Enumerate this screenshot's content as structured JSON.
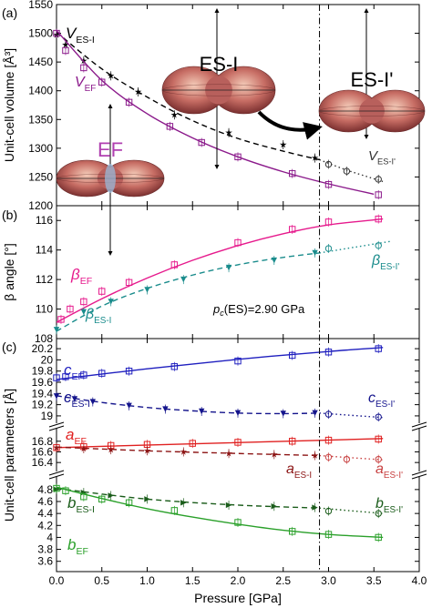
{
  "chart_data": [
    {
      "panel_label": "(a)",
      "type": "scatter",
      "ylabel": "Unit-cell volume [Å³]",
      "ylim": [
        1200,
        1550
      ],
      "yticks": [
        1200,
        1250,
        1300,
        1350,
        1400,
        1450,
        1500,
        1550
      ],
      "series": [
        {
          "key": "V_ES-I",
          "label_main": "V",
          "label_sub": "ES-I",
          "color": "#000000",
          "line": "dashed",
          "marker": "star",
          "x": [
            0.0,
            0.1,
            0.3,
            0.6,
            0.9,
            1.3,
            1.9,
            2.5,
            2.85
          ],
          "y": [
            1497,
            1480,
            1452,
            1426,
            1398,
            1358,
            1327,
            1306,
            1283
          ],
          "fit_x": [
            0.0,
            0.5,
            1.0,
            1.5,
            2.0,
            2.5,
            2.9
          ],
          "fit_y": [
            1502,
            1438,
            1389,
            1348,
            1317,
            1295,
            1280
          ]
        },
        {
          "key": "V_ES-I'",
          "label_main": "V",
          "label_sub": "ES-I'",
          "color": "#333333",
          "line": "dotted",
          "marker": "circle-open",
          "x": [
            3.0,
            3.2,
            3.55
          ],
          "y": [
            1272,
            1260,
            1246
          ],
          "fit_x": [
            2.9,
            3.2,
            3.6
          ],
          "fit_y": [
            1280,
            1262,
            1242
          ]
        },
        {
          "key": "V_EF",
          "label_main": "V",
          "label_sub": "EF",
          "color": "#8b1a8b",
          "line": "solid",
          "marker": "square",
          "x": [
            0.0,
            0.1,
            0.3,
            0.5,
            0.8,
            1.25,
            1.6,
            2.0,
            2.6,
            3.0,
            3.55
          ],
          "y": [
            1500,
            1470,
            1440,
            1415,
            1380,
            1338,
            1310,
            1285,
            1256,
            1237,
            1219
          ],
          "fit_x": [
            0.0,
            0.5,
            1.0,
            1.5,
            2.0,
            2.5,
            3.0,
            3.5
          ],
          "fit_y": [
            1505,
            1418,
            1360,
            1318,
            1285,
            1259,
            1238,
            1220
          ]
        }
      ]
    },
    {
      "panel_label": "(b)",
      "type": "scatter",
      "ylabel": "β angle [°]",
      "ylim": [
        108,
        117
      ],
      "yticks": [
        108,
        110,
        112,
        114,
        116
      ],
      "series": [
        {
          "key": "beta_EF",
          "label_main": "β",
          "label_sub": "EF",
          "color": "#e6198c",
          "line": "solid",
          "marker": "square",
          "x": [
            0.05,
            0.15,
            0.3,
            0.5,
            0.8,
            1.3,
            2.0,
            2.6,
            3.0,
            3.55
          ],
          "y": [
            109.3,
            110.0,
            110.5,
            111.2,
            111.8,
            113.0,
            114.5,
            115.4,
            115.9,
            116.1
          ],
          "fit_x": [
            0.0,
            0.5,
            1.0,
            1.5,
            2.0,
            2.5,
            3.0,
            3.6
          ],
          "fit_y": [
            109.1,
            110.7,
            112.1,
            113.3,
            114.3,
            115.1,
            115.7,
            116.1
          ]
        },
        {
          "key": "beta_ES-I",
          "label_main": "β",
          "label_sub": "ES-I",
          "color": "#1a8c8c",
          "line": "dashed",
          "marker": "triangle-down",
          "x": [
            0.0,
            0.3,
            0.6,
            1.0,
            1.4,
            1.9,
            2.4,
            2.85
          ],
          "y": [
            108.6,
            109.8,
            110.5,
            111.3,
            112.0,
            112.8,
            113.3,
            113.8
          ],
          "fit_x": [
            0.0,
            0.5,
            1.0,
            1.5,
            2.0,
            2.5,
            2.9
          ],
          "fit_y": [
            108.5,
            110.2,
            111.4,
            112.3,
            113.0,
            113.5,
            113.8
          ]
        },
        {
          "key": "beta_ES-I'",
          "label_main": "β",
          "label_sub": "ES-I'",
          "color": "#1a8c8c",
          "line": "dotted",
          "marker": "circle-open",
          "x": [
            3.0,
            3.55
          ],
          "y": [
            114.1,
            114.3
          ],
          "fit_x": [
            2.9,
            3.3,
            3.7
          ],
          "fit_y": [
            113.8,
            114.2,
            114.6
          ]
        }
      ]
    },
    {
      "panel_label": "(c)",
      "type": "scatter",
      "ylabel": "Unit-cell parameters [Å]",
      "broken_axis": true,
      "segments": [
        {
          "ylim": [
            18.95,
            20.25
          ],
          "yticks": [
            19.0,
            19.2,
            19.4,
            19.6,
            19.8,
            20.0,
            20.2
          ]
        },
        {
          "ylim": [
            16.3,
            16.95
          ],
          "yticks": [
            16.4,
            16.6,
            16.8
          ]
        },
        {
          "ylim": [
            3.55,
            4.95
          ],
          "yticks": [
            3.6,
            3.8,
            4.0,
            4.2,
            4.4,
            4.6,
            4.8
          ]
        }
      ],
      "series": [
        {
          "key": "c_EF",
          "segment": 0,
          "label_main": "c",
          "label_sub": "EF",
          "color": "#1f1fbf",
          "line": "solid",
          "marker": "square",
          "x": [
            0.0,
            0.1,
            0.3,
            0.5,
            0.8,
            1.3,
            2.0,
            2.6,
            3.0,
            3.55
          ],
          "y": [
            19.68,
            19.7,
            19.73,
            19.76,
            19.8,
            19.88,
            19.98,
            20.08,
            20.14,
            20.2
          ],
          "fit_x": [
            0.0,
            1.0,
            2.0,
            3.0,
            3.6
          ],
          "fit_y": [
            19.65,
            19.84,
            20.01,
            20.15,
            20.22
          ]
        },
        {
          "key": "c_ES-I",
          "segment": 0,
          "label_main": "c",
          "label_sub": "ES-I",
          "color": "#14148c",
          "line": "dashed",
          "marker": "triangle-down",
          "x": [
            0.0,
            0.2,
            0.4,
            0.8,
            1.2,
            1.6,
            2.0,
            2.5,
            2.85
          ],
          "y": [
            19.35,
            19.3,
            19.25,
            19.18,
            19.12,
            19.08,
            19.05,
            19.04,
            19.05
          ],
          "fit_x": [
            0.0,
            0.5,
            1.0,
            1.5,
            2.0,
            2.5,
            2.9
          ],
          "fit_y": [
            19.36,
            19.24,
            19.15,
            19.09,
            19.05,
            19.04,
            19.05
          ]
        },
        {
          "key": "c_ES-I'",
          "segment": 0,
          "label_main": "c",
          "label_sub": "ES-I'",
          "color": "#14148c",
          "line": "dotted",
          "marker": "circle-open",
          "x": [
            3.0,
            3.55
          ],
          "y": [
            19.03,
            18.98
          ],
          "fit_x": [
            2.9,
            3.6
          ],
          "fit_y": [
            19.05,
            18.97
          ]
        },
        {
          "key": "a_EF",
          "segment": 1,
          "label_main": "a",
          "label_sub": "EF",
          "color": "#e02020",
          "line": "solid",
          "marker": "square",
          "x": [
            0.0,
            0.3,
            0.6,
            1.0,
            1.5,
            2.0,
            2.6,
            3.0,
            3.55
          ],
          "y": [
            16.68,
            16.7,
            16.72,
            16.74,
            16.76,
            16.78,
            16.8,
            16.82,
            16.84
          ],
          "fit_x": [
            0.0,
            3.6
          ],
          "fit_y": [
            16.68,
            16.85
          ]
        },
        {
          "key": "a_ES-I",
          "segment": 1,
          "label_main": "a",
          "label_sub": "ES-I",
          "color": "#8c1414",
          "line": "dashed",
          "marker": "star",
          "x": [
            0.0,
            0.3,
            0.6,
            1.0,
            1.4,
            1.9,
            2.4,
            2.85
          ],
          "y": [
            16.68,
            16.66,
            16.64,
            16.62,
            16.6,
            16.57,
            16.55,
            16.53
          ],
          "fit_x": [
            0.0,
            1.0,
            2.0,
            2.9
          ],
          "fit_y": [
            16.69,
            16.62,
            16.57,
            16.53
          ]
        },
        {
          "key": "a_ES-I'",
          "segment": 1,
          "label_main": "a",
          "label_sub": "ES-I'",
          "color": "#c84040",
          "line": "dotted",
          "marker": "circle-open",
          "x": [
            3.0,
            3.2,
            3.55
          ],
          "y": [
            16.5,
            16.46,
            16.46
          ],
          "fit_x": [
            2.9,
            3.6
          ],
          "fit_y": [
            16.53,
            16.45
          ]
        },
        {
          "key": "b_ES-I",
          "segment": 2,
          "label_main": "b",
          "label_sub": "ES-I",
          "color": "#1a5c1a",
          "line": "dashed",
          "marker": "triangle-right",
          "x": [
            0.0,
            0.3,
            0.6,
            1.0,
            1.4,
            1.9,
            2.4,
            2.85
          ],
          "y": [
            4.8,
            4.75,
            4.7,
            4.64,
            4.58,
            4.54,
            4.52,
            4.5
          ],
          "fit_x": [
            0.0,
            1.0,
            2.0,
            2.9
          ],
          "fit_y": [
            4.82,
            4.64,
            4.54,
            4.49
          ]
        },
        {
          "key": "b_ES-I'",
          "segment": 2,
          "label_main": "b",
          "label_sub": "ES-I'",
          "color": "#1a5c1a",
          "line": "dotted",
          "marker": "circle-open",
          "x": [
            3.0,
            3.55
          ],
          "y": [
            4.44,
            4.4
          ],
          "fit_x": [
            2.9,
            3.6
          ],
          "fit_y": [
            4.49,
            4.4
          ]
        },
        {
          "key": "b_EF",
          "segment": 2,
          "label_main": "b",
          "label_sub": "EF",
          "color": "#2aa02a",
          "line": "solid",
          "marker": "square",
          "x": [
            0.0,
            0.1,
            0.3,
            0.5,
            0.8,
            1.3,
            2.0,
            2.6,
            3.0,
            3.55
          ],
          "y": [
            4.82,
            4.78,
            4.68,
            4.64,
            4.58,
            4.45,
            4.25,
            4.1,
            4.05,
            4.0
          ],
          "fit_x": [
            0.0,
            0.5,
            1.0,
            1.5,
            2.0,
            2.5,
            3.0,
            3.6
          ],
          "fit_y": [
            4.84,
            4.65,
            4.48,
            4.34,
            4.22,
            4.12,
            4.05,
            4.0
          ]
        }
      ]
    }
  ],
  "xaxis": {
    "xlabel": "Pressure [GPa]",
    "xlim": [
      0.0,
      4.0
    ],
    "xticks": [
      "0.0",
      "0.5",
      "1.0",
      "1.5",
      "2.0",
      "2.5",
      "3.0",
      "3.5",
      "4.0"
    ]
  },
  "transition": {
    "pressure": 2.9,
    "label_prefix": "p",
    "label_sub": "c",
    "label_rest": "(ES)=2.90 GPa"
  },
  "inset_labels": {
    "ef": "EF",
    "es1": "ES-I",
    "es1p": "ES-I'"
  },
  "colors": {
    "ellipsoid": "#b8605c",
    "ellipsoid_light": "#e8b0a0",
    "ef_label": "#b040b0",
    "arrow": "#000000"
  }
}
